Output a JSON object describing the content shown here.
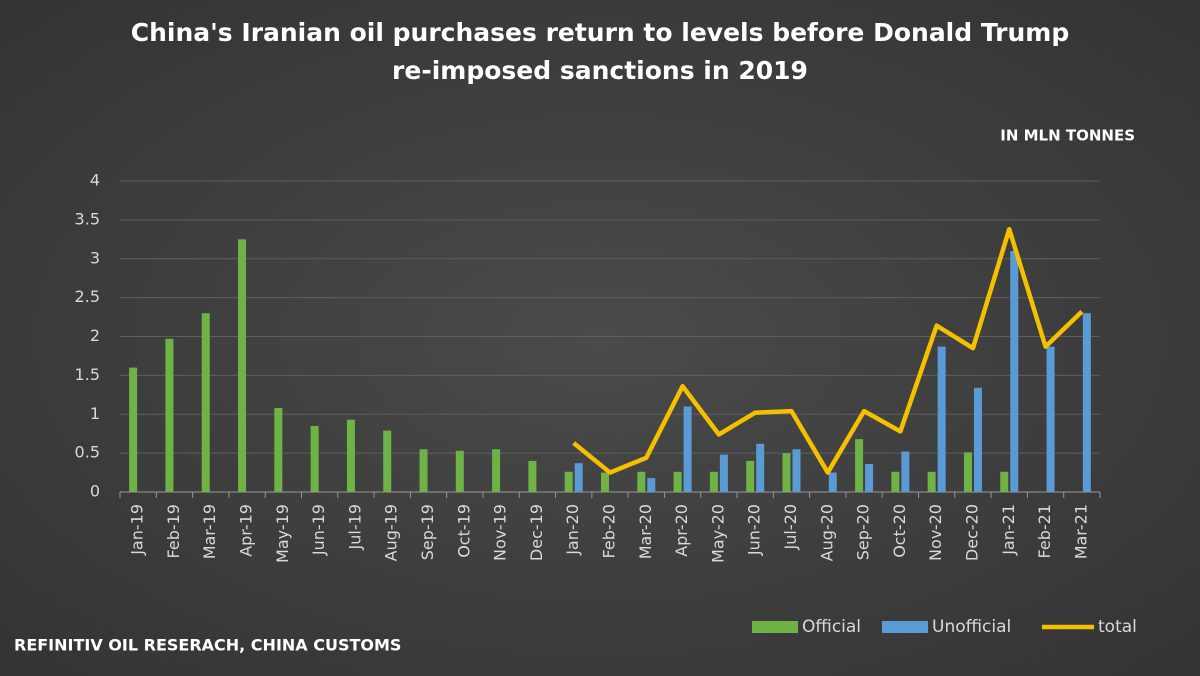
{
  "chart_data": {
    "type": "bar-line",
    "title": "China's Iranian oil purchases return to levels before Donald Trump re-imposed sanctions in 2019",
    "subtitle": "IN MLN TONNES",
    "source": "REFINITIV OIL RESERACH, CHINA CUSTOMS",
    "categories": [
      "Jan-19",
      "Feb-19",
      "Mar-19",
      "Apr-19",
      "May-19",
      "Jun-19",
      "Jul-19",
      "Aug-19",
      "Sep-19",
      "Oct-19",
      "Nov-19",
      "Dec-19",
      "Jan-20",
      "Feb-20",
      "Mar-20",
      "Apr-20",
      "May-20",
      "Jun-20",
      "Jul-20",
      "Aug-20",
      "Sep-20",
      "Oct-20",
      "Nov-20",
      "Dec-20",
      "Jan-21",
      "Feb-21",
      "Mar-21"
    ],
    "series": [
      {
        "name": "Official",
        "type": "bar",
        "color": "#6fb346",
        "values": [
          1.6,
          1.97,
          2.3,
          3.25,
          1.08,
          0.85,
          0.93,
          0.79,
          0.55,
          0.53,
          0.55,
          0.4,
          0.26,
          0.25,
          0.26,
          0.26,
          0.26,
          0.4,
          0.5,
          null,
          0.68,
          0.26,
          0.26,
          0.51,
          0.26,
          null,
          null
        ]
      },
      {
        "name": "Unofficial",
        "type": "bar",
        "color": "#5b9bd5",
        "values": [
          null,
          null,
          null,
          null,
          null,
          null,
          null,
          null,
          null,
          null,
          null,
          null,
          0.37,
          null,
          0.18,
          1.1,
          0.48,
          0.62,
          0.55,
          0.25,
          0.36,
          0.52,
          1.87,
          1.34,
          3.1,
          1.87,
          2.3
        ]
      },
      {
        "name": "total",
        "type": "line",
        "color": "#f5c000",
        "values": [
          null,
          null,
          null,
          null,
          null,
          null,
          null,
          null,
          null,
          null,
          null,
          null,
          0.63,
          0.25,
          0.44,
          1.36,
          0.74,
          1.02,
          1.04,
          0.25,
          1.04,
          0.78,
          2.14,
          1.85,
          3.38,
          1.87,
          2.32
        ]
      }
    ],
    "ylim": [
      0,
      4
    ],
    "yticks": [
      0,
      0.5,
      1,
      1.5,
      2,
      2.5,
      3,
      3.5,
      4
    ],
    "grid": true,
    "legend": "bottom-right"
  }
}
